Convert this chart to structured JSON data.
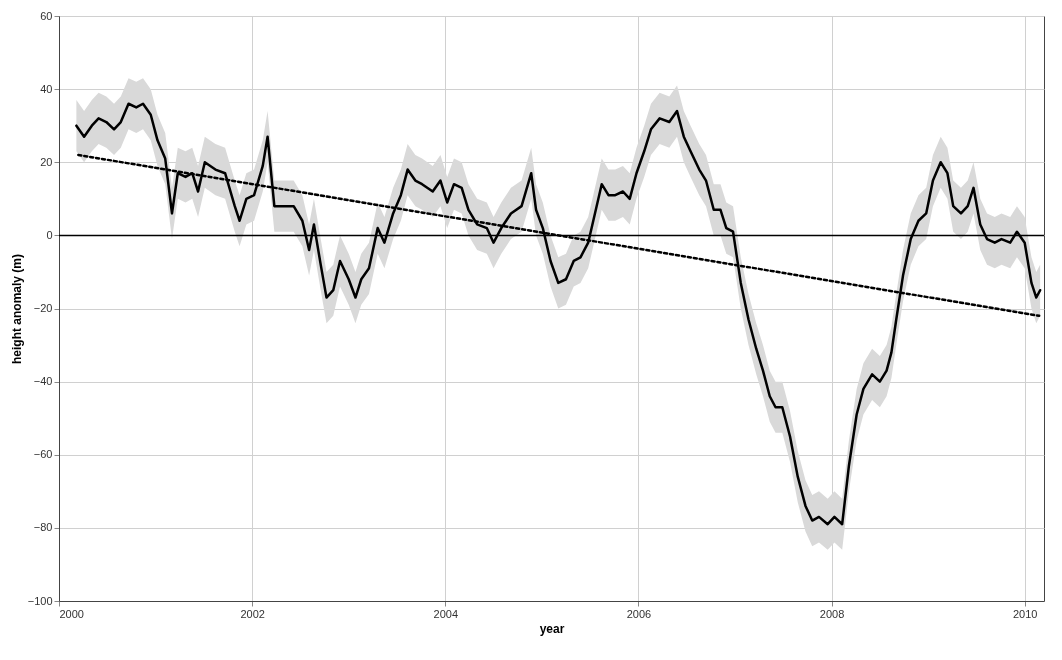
{
  "chart_data": {
    "type": "line",
    "xlabel": "year",
    "ylabel": "height anomaly (m)",
    "xlim": [
      2000,
      2010.2
    ],
    "xticks": [
      2000,
      2002,
      2004,
      2006,
      2008,
      2010
    ],
    "ylim": [
      -100,
      60
    ],
    "yticks": [
      -100,
      -80,
      -60,
      -40,
      -20,
      0,
      20,
      40,
      60
    ],
    "grid": true,
    "marker": "none",
    "ref_lines": [
      {
        "axis": "y",
        "value": 0,
        "color": "#000000"
      }
    ],
    "series": [
      {
        "color": "#000000",
        "line_style": "solid",
        "x": [
          2000.18,
          2000.26,
          2000.34,
          2000.41,
          2000.49,
          2000.57,
          2000.64,
          2000.72,
          2000.8,
          2000.87,
          2000.95,
          2001.02,
          2001.1,
          2001.17,
          2001.23,
          2001.31,
          2001.38,
          2001.44,
          2001.51,
          2001.62,
          2001.72,
          2001.82,
          2001.87,
          2001.94,
          2002.02,
          2002.11,
          2002.16,
          2002.23,
          2002.33,
          2002.43,
          2002.52,
          2002.59,
          2002.64,
          2002.71,
          2002.77,
          2002.84,
          2002.91,
          2003.0,
          2003.07,
          2003.13,
          2003.21,
          2003.3,
          2003.37,
          2003.46,
          2003.54,
          2003.61,
          2003.69,
          2003.76,
          2003.87,
          2003.95,
          2004.02,
          2004.09,
          2004.17,
          2004.24,
          2004.33,
          2004.43,
          2004.5,
          2004.58,
          2004.68,
          2004.79,
          2004.89,
          2004.94,
          2005.01,
          2005.09,
          2005.17,
          2005.25,
          2005.33,
          2005.4,
          2005.48,
          2005.55,
          2005.62,
          2005.69,
          2005.76,
          2005.84,
          2005.91,
          2005.98,
          2006.06,
          2006.13,
          2006.22,
          2006.32,
          2006.4,
          2006.47,
          2006.54,
          2006.63,
          2006.7,
          2006.78,
          2006.85,
          2006.91,
          2006.98,
          2007.06,
          2007.14,
          2007.22,
          2007.29,
          2007.36,
          2007.42,
          2007.49,
          2007.57,
          2007.65,
          2007.73,
          2007.8,
          2007.87,
          2007.96,
          2008.03,
          2008.11,
          2008.18,
          2008.26,
          2008.33,
          2008.42,
          2008.5,
          2008.57,
          2008.62,
          2008.67,
          2008.74,
          2008.82,
          2008.9,
          2008.98,
          2009.05,
          2009.13,
          2009.2,
          2009.26,
          2009.34,
          2009.41,
          2009.47,
          2009.54,
          2009.61,
          2009.69,
          2009.76,
          2009.85,
          2009.92,
          2010.0,
          2010.07,
          2010.12,
          2010.16
        ],
        "values": [
          30,
          27,
          30,
          32,
          31,
          29,
          31,
          36,
          35,
          36,
          33,
          26,
          21,
          6,
          17,
          16,
          17,
          12,
          20,
          18,
          17,
          8,
          4,
          10,
          11,
          19,
          27,
          8,
          8,
          8,
          4,
          -4,
          3,
          -8,
          -17,
          -15,
          -7,
          -12,
          -17,
          -12,
          -9,
          2,
          -2,
          6,
          11,
          18,
          15,
          14,
          12,
          15,
          9,
          14,
          13,
          7,
          3,
          2,
          -2,
          2,
          6,
          8,
          17,
          7,
          2,
          -7,
          -13,
          -12,
          -7,
          -6,
          -2,
          6,
          14,
          11,
          11,
          12,
          10,
          17,
          23,
          29,
          32,
          31,
          34,
          27,
          23,
          18,
          15,
          7,
          7,
          2,
          1,
          -13,
          -23,
          -31,
          -37,
          -44,
          -47,
          -47,
          -55,
          -66,
          -74,
          -78,
          -77,
          -79,
          -77,
          -79,
          -63,
          -49,
          -42,
          -38,
          -40,
          -37,
          -32,
          -23,
          -11,
          -1,
          4,
          6,
          15,
          20,
          17,
          8,
          6,
          8,
          13,
          3,
          -1,
          -2,
          -1,
          -2,
          1,
          -2,
          -13,
          -17,
          -15
        ],
        "lower": [
          23,
          20,
          23,
          25,
          24,
          22,
          24,
          29,
          28,
          29,
          26,
          19,
          14,
          -1,
          10,
          9,
          10,
          5,
          13,
          11,
          10,
          1,
          -3,
          3,
          4,
          12,
          20,
          1,
          1,
          1,
          -3,
          -11,
          -4,
          -15,
          -24,
          -22,
          -14,
          -19,
          -24,
          -19,
          -16,
          -5,
          -9,
          -1,
          4,
          11,
          8,
          7,
          5,
          8,
          2,
          7,
          6,
          0,
          -4,
          -5,
          -9,
          -5,
          -1,
          1,
          10,
          0,
          -5,
          -14,
          -20,
          -19,
          -14,
          -13,
          -9,
          -1,
          7,
          4,
          4,
          5,
          3,
          10,
          16,
          22,
          25,
          24,
          27,
          20,
          16,
          11,
          8,
          0,
          0,
          -5,
          -6,
          -20,
          -30,
          -38,
          -44,
          -51,
          -54,
          -54,
          -62,
          -73,
          -81,
          -85,
          -84,
          -86,
          -84,
          -86,
          -70,
          -56,
          -49,
          -45,
          -47,
          -44,
          -39,
          -30,
          -18,
          -8,
          -3,
          -1,
          8,
          13,
          10,
          1,
          -1,
          1,
          6,
          -4,
          -8,
          -9,
          -8,
          -9,
          -6,
          -9,
          -20,
          -24,
          -22
        ],
        "upper": [
          37,
          34,
          37,
          39,
          38,
          36,
          38,
          43,
          42,
          43,
          40,
          33,
          28,
          13,
          24,
          23,
          24,
          19,
          27,
          25,
          24,
          15,
          11,
          17,
          18,
          26,
          34,
          15,
          15,
          15,
          11,
          3,
          10,
          -1,
          -10,
          -8,
          0,
          -5,
          -10,
          -5,
          -2,
          9,
          5,
          13,
          18,
          25,
          22,
          21,
          19,
          22,
          16,
          21,
          20,
          14,
          10,
          9,
          5,
          9,
          13,
          15,
          24,
          14,
          9,
          0,
          -6,
          -5,
          0,
          1,
          5,
          13,
          21,
          18,
          18,
          19,
          17,
          24,
          30,
          36,
          39,
          38,
          41,
          34,
          30,
          25,
          22,
          14,
          14,
          9,
          8,
          -6,
          -16,
          -24,
          -30,
          -37,
          -40,
          -40,
          -48,
          -59,
          -67,
          -71,
          -70,
          -72,
          -70,
          -72,
          -56,
          -42,
          -35,
          -31,
          -33,
          -30,
          -25,
          -16,
          -4,
          6,
          11,
          13,
          22,
          27,
          24,
          15,
          13,
          15,
          20,
          10,
          6,
          5,
          6,
          5,
          8,
          5,
          -6,
          -10,
          -8
        ]
      },
      {
        "type": "line",
        "color": "#000000",
        "line_style": "dotted",
        "x": [
          2000.2,
          2010.15
        ],
        "values": [
          22,
          -22
        ]
      }
    ]
  }
}
